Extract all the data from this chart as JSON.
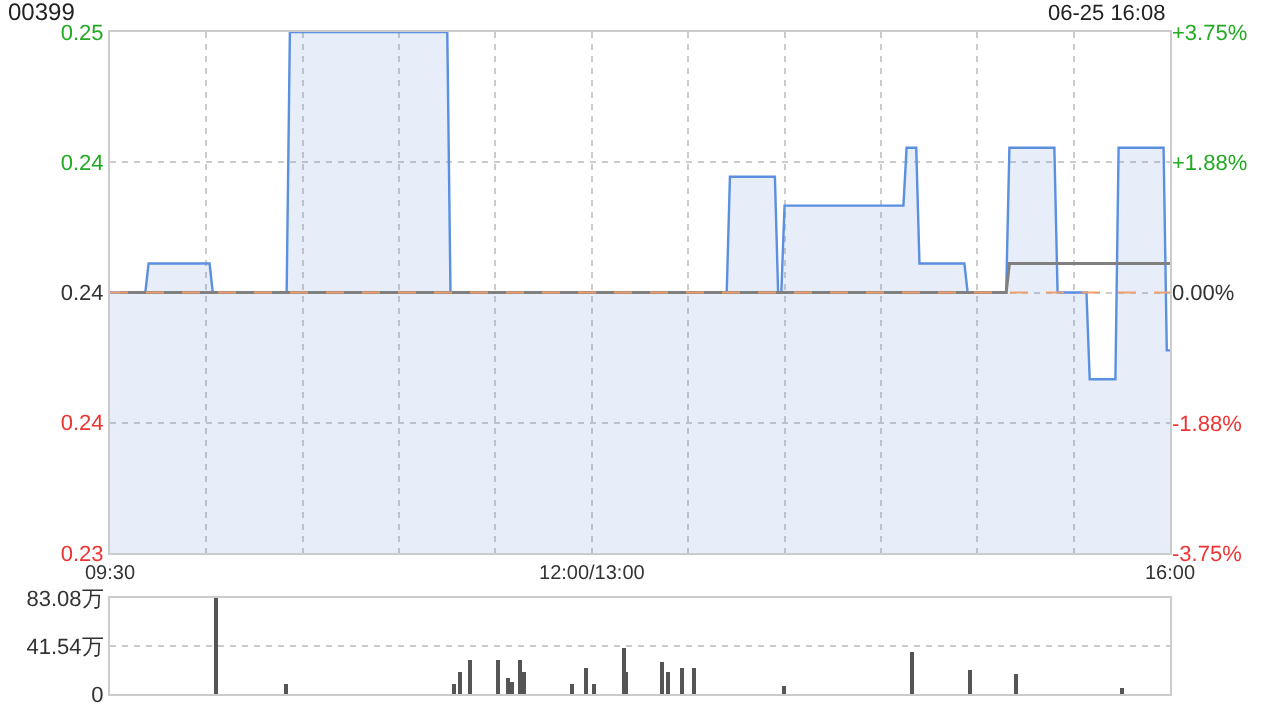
{
  "chart_data": [
    {
      "type": "area",
      "title": "00399",
      "annotations": [
        "06-25 16:08"
      ],
      "categories": [
        "09:30",
        null,
        null,
        null,
        null,
        null,
        null,
        null,
        null,
        null,
        null,
        null,
        null,
        null,
        null,
        null,
        null,
        null,
        null,
        null,
        null,
        null,
        null,
        null,
        null,
        null,
        null,
        null,
        null,
        null,
        null,
        null,
        null,
        null,
        null,
        null,
        null,
        null,
        null,
        null,
        null,
        null,
        null,
        null,
        null,
        null,
        null,
        null,
        null,
        null,
        null,
        null,
        null,
        null,
        null,
        null,
        null,
        null,
        null,
        null,
        null,
        null,
        null,
        null,
        null,
        null,
        null,
        null,
        null,
        null,
        null,
        null,
        null,
        null,
        null,
        null,
        null,
        null,
        null,
        null,
        null,
        null,
        null,
        null,
        null,
        null,
        null,
        null,
        null,
        null,
        null,
        null,
        null,
        null,
        null,
        null,
        null,
        null,
        null,
        null,
        null,
        null,
        null,
        null,
        null,
        null,
        null,
        null,
        null,
        null,
        null,
        null,
        null,
        null,
        null,
        null,
        null,
        null,
        null,
        null,
        null,
        null,
        null,
        null,
        null,
        null,
        null,
        null,
        null,
        null,
        null,
        null,
        null,
        null,
        null,
        null,
        null,
        null,
        null,
        null,
        null,
        null,
        null,
        null,
        null,
        null,
        null,
        null,
        null,
        null,
        "12:00/13:00",
        null,
        null,
        null,
        null,
        null,
        null,
        null,
        null,
        null,
        null,
        null,
        null,
        null,
        null,
        null,
        null,
        null,
        null,
        null,
        null,
        null,
        null,
        null,
        null,
        null,
        null,
        null,
        null,
        null,
        null,
        null,
        null,
        null,
        null,
        null,
        null,
        null,
        null,
        null,
        null,
        null,
        null,
        null,
        null,
        null,
        null,
        null,
        null,
        null,
        null,
        null,
        null,
        null,
        null,
        null,
        null,
        null,
        null,
        null,
        null,
        null,
        null,
        null,
        null,
        null,
        null,
        null,
        null,
        null,
        null,
        null,
        null,
        null,
        null,
        null,
        null,
        null,
        null,
        null,
        null,
        null,
        null,
        null,
        null,
        null,
        null,
        null,
        null,
        null,
        null,
        null,
        null,
        null,
        null,
        null,
        null,
        null,
        null,
        null,
        null,
        null,
        null,
        null,
        null,
        null,
        null,
        null,
        null,
        null,
        null,
        null,
        null,
        null,
        null,
        null,
        null,
        null,
        null,
        null,
        null,
        null,
        null,
        null,
        null,
        null,
        null,
        null,
        null,
        null,
        null,
        null,
        null,
        null,
        null,
        null,
        null,
        null,
        null,
        null,
        null,
        null,
        null,
        null,
        null,
        null,
        null,
        null,
        null,
        null,
        null,
        null,
        null,
        null,
        null,
        null,
        null,
        null,
        null,
        null,
        null,
        null,
        null,
        null,
        null,
        null,
        null,
        null,
        null,
        null,
        null,
        null,
        null,
        null,
        null,
        null,
        null,
        null,
        null,
        null,
        "16:00"
      ],
      "series": [
        {
          "type": "area",
          "color": "#5b8fe0",
          "values": [
            0.24,
            0.24,
            0.24,
            0.24,
            0.24,
            0.24,
            0.24,
            0.24,
            0.24,
            0.24,
            0.24,
            0.24,
            0.241,
            0.241,
            0.241,
            0.241,
            0.241,
            0.241,
            0.241,
            0.241,
            0.241,
            0.241,
            0.241,
            0.241,
            0.241,
            0.241,
            0.241,
            0.241,
            0.241,
            0.241,
            0.241,
            0.241,
            0.24,
            0.24,
            0.24,
            0.24,
            0.24,
            0.24,
            0.24,
            0.24,
            0.24,
            0.24,
            0.24,
            0.24,
            0.24,
            0.24,
            0.24,
            0.24,
            0.24,
            0.24,
            0.24,
            0.24,
            0.24,
            0.24,
            0.24,
            0.24,
            0.249,
            0.249,
            0.249,
            0.249,
            0.249,
            0.249,
            0.249,
            0.249,
            0.249,
            0.249,
            0.249,
            0.249,
            0.249,
            0.249,
            0.249,
            0.249,
            0.249,
            0.249,
            0.249,
            0.249,
            0.249,
            0.249,
            0.249,
            0.249,
            0.249,
            0.249,
            0.249,
            0.249,
            0.249,
            0.249,
            0.249,
            0.249,
            0.249,
            0.249,
            0.249,
            0.249,
            0.249,
            0.249,
            0.249,
            0.249,
            0.249,
            0.249,
            0.249,
            0.249,
            0.249,
            0.249,
            0.249,
            0.249,
            0.249,
            0.249,
            0.24,
            0.24,
            0.24,
            0.24,
            0.24,
            0.24,
            0.24,
            0.24,
            0.24,
            0.24,
            0.24,
            0.24,
            0.24,
            0.24,
            0.24,
            0.24,
            0.24,
            0.24,
            0.24,
            0.24,
            0.24,
            0.24,
            0.24,
            0.24,
            0.24,
            0.24,
            0.24,
            0.24,
            0.24,
            0.24,
            0.24,
            0.24,
            0.24,
            0.24,
            0.24,
            0.24,
            0.24,
            0.24,
            0.24,
            0.24,
            0.24,
            0.24,
            0.24,
            0.24,
            0.24,
            0.24,
            0.24,
            0.24,
            0.24,
            0.24,
            0.24,
            0.24,
            0.24,
            0.24,
            0.24,
            0.24,
            0.24,
            0.24,
            0.24,
            0.24,
            0.24,
            0.24,
            0.24,
            0.24,
            0.24,
            0.24,
            0.24,
            0.24,
            0.24,
            0.24,
            0.24,
            0.24,
            0.24,
            0.24,
            0.24,
            0.24,
            0.24,
            0.24,
            0.24,
            0.24,
            0.24,
            0.24,
            0.24,
            0.24,
            0.24,
            0.24,
            0.24,
            0.244,
            0.244,
            0.244,
            0.244,
            0.244,
            0.244,
            0.244,
            0.244,
            0.244,
            0.244,
            0.244,
            0.244,
            0.244,
            0.244,
            0.244,
            0.24,
            0.24,
            0.243,
            0.243,
            0.243,
            0.243,
            0.243,
            0.243,
            0.243,
            0.243,
            0.243,
            0.243,
            0.243,
            0.243,
            0.243,
            0.243,
            0.243,
            0.243,
            0.243,
            0.243,
            0.243,
            0.243,
            0.243,
            0.243,
            0.243,
            0.243,
            0.243,
            0.243,
            0.243,
            0.243,
            0.243,
            0.243,
            0.243,
            0.243,
            0.243,
            0.243,
            0.243,
            0.243,
            0.243,
            0.243,
            0.245,
            0.245,
            0.245,
            0.245,
            0.241,
            0.241,
            0.241,
            0.241,
            0.241,
            0.241,
            0.241,
            0.241,
            0.241,
            0.241,
            0.241,
            0.241,
            0.241,
            0.241,
            0.241,
            0.24,
            0.24,
            0.24,
            0.24,
            0.24,
            0.24,
            0.24,
            0.24,
            0.24,
            0.24,
            0.24,
            0.24,
            0.24,
            0.245,
            0.245,
            0.245,
            0.245,
            0.245,
            0.245,
            0.245,
            0.245,
            0.245,
            0.245,
            0.245,
            0.245,
            0.245,
            0.245,
            0.245,
            0.24,
            0.24,
            0.24,
            0.24,
            0.24,
            0.24,
            0.24,
            0.24,
            0.24,
            0.24,
            0.237,
            0.237,
            0.237,
            0.237,
            0.237,
            0.237,
            0.237,
            0.237,
            0.237,
            0.245,
            0.245,
            0.245,
            0.245,
            0.245,
            0.245,
            0.245,
            0.245,
            0.245,
            0.245,
            0.245,
            0.245,
            0.245,
            0.245,
            0.245,
            0.238,
            0.238
          ]
        },
        {
          "type": "line",
          "color": "#808080",
          "values": [
            null,
            null,
            null,
            0.24,
            0.24,
            0.24,
            0.24,
            0.24,
            0.24,
            0.24,
            0.24,
            0.24,
            0.24,
            0.24,
            0.24,
            0.24,
            0.24,
            0.24,
            0.24,
            0.24,
            0.24,
            0.24,
            0.24,
            0.24,
            0.24,
            0.24,
            0.24,
            0.24,
            0.24,
            0.24,
            0.24,
            0.24,
            0.24,
            0.24,
            0.24,
            0.24,
            0.24,
            0.24,
            0.24,
            0.24,
            0.24,
            0.24,
            0.24,
            0.24,
            0.24,
            0.24,
            0.24,
            0.24,
            0.24,
            0.24,
            0.24,
            0.24,
            0.24,
            0.24,
            0.24,
            0.24,
            0.24,
            0.24,
            0.24,
            0.24,
            0.24,
            0.24,
            0.24,
            0.24,
            0.24,
            0.24,
            0.24,
            0.24,
            0.24,
            0.24,
            0.24,
            0.24,
            0.24,
            0.24,
            0.24,
            0.24,
            0.24,
            0.24,
            0.24,
            0.24,
            0.24,
            0.24,
            0.24,
            0.24,
            0.24,
            0.24,
            0.24,
            0.24,
            0.24,
            0.24,
            0.24,
            0.24,
            0.24,
            0.24,
            0.24,
            0.24,
            0.24,
            0.24,
            0.24,
            0.24,
            0.24,
            0.24,
            0.24,
            0.24,
            0.24,
            0.24,
            0.24,
            0.24,
            0.24,
            0.24,
            0.24,
            0.24,
            0.24,
            0.24,
            0.24,
            0.24,
            0.24,
            0.24,
            0.24,
            0.24,
            0.24,
            0.24,
            0.24,
            0.24,
            0.24,
            0.24,
            0.24,
            0.24,
            0.24,
            0.24,
            0.24,
            0.24,
            0.24,
            0.24,
            0.24,
            0.24,
            0.24,
            0.24,
            0.24,
            0.24,
            0.24,
            0.24,
            0.24,
            0.24,
            0.24,
            0.24,
            0.24,
            0.24,
            0.24,
            0.24,
            0.24,
            0.24,
            0.24,
            0.24,
            0.24,
            0.24,
            0.24,
            0.24,
            0.24,
            0.24,
            0.24,
            0.24,
            0.24,
            0.24,
            0.24,
            0.24,
            0.24,
            0.24,
            0.24,
            0.24,
            0.24,
            0.24,
            0.24,
            0.24,
            0.24,
            0.24,
            0.24,
            0.24,
            0.24,
            0.24,
            0.24,
            0.24,
            0.24,
            0.24,
            0.24,
            0.24,
            0.24,
            0.24,
            0.24,
            0.24,
            0.24,
            0.24,
            0.24,
            0.24,
            0.24,
            0.24,
            0.24,
            0.24,
            0.24,
            0.24,
            0.24,
            0.24,
            0.24,
            0.24,
            0.24,
            0.24,
            0.24,
            0.24,
            0.24,
            0.24,
            0.24,
            0.24,
            0.24,
            0.24,
            0.24,
            0.24,
            0.24,
            0.24,
            0.24,
            0.24,
            0.24,
            0.24,
            0.24,
            0.24,
            0.24,
            0.24,
            0.24,
            0.24,
            0.24,
            0.24,
            0.24,
            0.24,
            0.24,
            0.24,
            0.24,
            0.24,
            0.24,
            0.24,
            0.24,
            0.24,
            0.24,
            0.24,
            0.24,
            0.24,
            0.24,
            0.24,
            0.24,
            0.24,
            0.24,
            0.24,
            0.24,
            0.24,
            0.24,
            0.24,
            0.24,
            0.24,
            0.24,
            0.24,
            0.24,
            0.24,
            0.24,
            0.24,
            0.24,
            0.24,
            0.24,
            0.24,
            0.24,
            0.24,
            0.24,
            0.24,
            0.24,
            0.24,
            0.24,
            0.24,
            0.24,
            0.24,
            0.24,
            0.24,
            0.24,
            0.24,
            0.241,
            0.241,
            0.241,
            0.241,
            0.241,
            0.241,
            0.241,
            0.241,
            0.241,
            0.241,
            0.241,
            0.241,
            0.241,
            0.241,
            0.241,
            0.241,
            0.241,
            0.241,
            0.241,
            0.241,
            0.241,
            0.241,
            0.241,
            0.241,
            0.241,
            0.241,
            0.241,
            0.241,
            0.241,
            0.241,
            0.241,
            0.241,
            0.241,
            0.241,
            0.241,
            0.241,
            0.241,
            0.241,
            0.241,
            0.241,
            0.241,
            0.241,
            0.241,
            0.241,
            0.241,
            0.241,
            0.241,
            0.241,
            0.241,
            0.241,
            0.241
          ]
        }
      ],
      "ylim": [
        0.231,
        0.249
      ],
      "yticks": [
        {
          "value": 0.249,
          "label": "0.25"
        },
        {
          "value": 0.2445,
          "label": "0.24"
        },
        {
          "value": 0.24,
          "label": "0.24"
        },
        {
          "value": 0.2355,
          "label": "0.24"
        },
        {
          "value": 0.231,
          "label": "0.23"
        }
      ],
      "y2lim": [
        -3.75,
        3.75
      ],
      "y2ticks": [
        {
          "value": 3.75,
          "label": "+3.75%"
        },
        {
          "value": 1.88,
          "label": "+1.88%"
        },
        {
          "value": 0,
          "label": "0.00%"
        },
        {
          "value": -1.88,
          "label": "-1.88%"
        },
        {
          "value": -3.75,
          "label": "-3.75%"
        }
      ],
      "ref_lines": [
        {
          "axis": "y",
          "value": 0.24,
          "color": "#f0a070",
          "line_style": "dashed"
        }
      ],
      "grid": true,
      "marker": "none"
    },
    {
      "type": "bar",
      "color": "#555555",
      "categories": [
        null,
        null,
        null,
        null,
        null,
        null,
        null,
        null,
        null,
        null,
        null,
        null,
        null,
        null,
        null,
        null,
        null,
        null,
        null,
        null,
        null,
        null,
        null,
        null,
        null,
        null,
        null,
        null,
        null,
        null,
        null,
        null,
        null,
        null,
        null,
        null,
        null,
        null,
        null,
        null,
        null,
        null,
        null,
        null,
        null,
        null,
        null,
        null,
        null,
        null,
        null,
        null,
        null,
        null,
        null,
        null,
        null,
        null,
        null,
        null,
        null,
        null,
        null,
        null,
        null,
        null,
        null,
        null,
        null,
        null,
        null,
        null,
        null,
        null,
        null,
        null,
        null,
        null,
        null,
        null,
        null,
        null,
        null,
        null,
        null,
        null,
        null,
        null,
        null,
        null,
        null,
        null,
        null,
        null,
        null,
        null,
        null,
        null,
        null,
        null,
        null,
        null,
        null,
        null,
        null,
        null,
        null,
        null,
        null,
        null,
        null,
        null,
        null,
        null,
        null,
        null,
        null,
        null,
        null,
        null,
        null,
        null,
        null,
        null,
        null,
        null,
        null,
        null,
        null,
        null,
        null,
        null,
        null,
        null,
        null,
        null,
        null,
        null,
        null,
        null,
        null,
        null,
        null,
        null,
        null,
        null,
        null,
        null,
        null,
        null,
        null,
        null,
        null,
        null,
        null,
        null,
        null,
        null,
        null,
        null,
        null,
        null,
        null,
        null,
        null,
        null,
        null,
        null,
        null,
        null,
        null,
        null,
        null,
        null,
        null,
        null,
        null,
        null,
        null,
        null,
        null,
        null,
        null,
        null,
        null,
        null,
        null,
        null,
        null,
        null,
        null,
        null,
        null,
        null,
        null,
        null,
        null,
        null,
        null,
        null,
        null,
        null,
        null,
        null,
        null,
        null,
        null,
        null,
        null,
        null,
        null,
        null,
        null,
        null,
        null,
        null,
        null,
        null,
        null,
        null,
        null,
        null,
        null,
        null,
        null,
        null,
        null,
        null,
        null,
        null,
        null,
        null,
        null,
        null,
        null,
        null,
        null,
        null,
        null,
        null,
        null,
        null,
        null,
        null,
        null,
        null,
        null,
        null,
        null,
        null,
        null,
        null,
        null,
        null,
        null,
        null,
        null,
        null,
        null,
        null,
        null,
        null,
        null,
        null,
        null,
        null,
        null,
        null,
        null,
        null,
        null,
        null,
        null,
        null,
        null,
        null,
        null,
        null,
        null,
        null,
        null,
        null,
        null,
        null,
        null,
        null,
        null,
        null,
        null,
        null,
        null,
        null,
        null,
        null,
        null,
        null,
        null,
        null,
        null,
        null,
        null,
        null,
        null,
        null,
        null,
        null,
        null,
        null,
        null,
        null,
        null,
        null,
        null,
        null,
        null,
        null,
        null,
        null,
        null,
        null,
        null,
        null,
        null,
        null,
        null,
        null,
        null,
        null,
        null,
        null,
        null
      ],
      "values": [
        0,
        0,
        0,
        0,
        0,
        0,
        0,
        0,
        0,
        0,
        0,
        0,
        0,
        0,
        0,
        0,
        0,
        0,
        0,
        0,
        0,
        0,
        0,
        0,
        0,
        0,
        0,
        0,
        0,
        0,
        0,
        0,
        0,
        83,
        0,
        0,
        0,
        0,
        0,
        0,
        0,
        0,
        0,
        0,
        0,
        0,
        0,
        0,
        0,
        0,
        0,
        0,
        0,
        0,
        0,
        9,
        0,
        0,
        0,
        0,
        0,
        0,
        0,
        0,
        0,
        0,
        0,
        0,
        0,
        0,
        0,
        0,
        0,
        0,
        0,
        0,
        0,
        0,
        0,
        0,
        0,
        0,
        0,
        0,
        0,
        0,
        0,
        0,
        0,
        0,
        0,
        0,
        0,
        0,
        0,
        0,
        0,
        0,
        0,
        0,
        0,
        0,
        0,
        0,
        0,
        0,
        0,
        9,
        0,
        19,
        0,
        0,
        29,
        0,
        0,
        0,
        0,
        0,
        0,
        0,
        0,
        29,
        0,
        0,
        14,
        10,
        0,
        0,
        29,
        19,
        0,
        0,
        0,
        0,
        0,
        0,
        0,
        0,
        0,
        0,
        0,
        0,
        0,
        0,
        9,
        0,
        0,
        0,
        22,
        0,
        0,
        9,
        0,
        0,
        0,
        0,
        0,
        0,
        0,
        0,
        39,
        19,
        0,
        0,
        0,
        0,
        0,
        0,
        0,
        0,
        0,
        0,
        27,
        0,
        19,
        0,
        0,
        0,
        22,
        0,
        0,
        0,
        22,
        0,
        0,
        0,
        0,
        0,
        0,
        0,
        0,
        0,
        0,
        0,
        0,
        0,
        0,
        0,
        0,
        0,
        0,
        0,
        0,
        0,
        0,
        0,
        0,
        0,
        0,
        0,
        7,
        0,
        0,
        0,
        0,
        0,
        0,
        0,
        0,
        0,
        0,
        0,
        0,
        0,
        0,
        0,
        0,
        0,
        0,
        0,
        0,
        0,
        0,
        0,
        0,
        0,
        0,
        0,
        0,
        0,
        0,
        0,
        0,
        0,
        0,
        0,
        0,
        0,
        0,
        0,
        36,
        0,
        0,
        0,
        0,
        0,
        0,
        0,
        0,
        0,
        0,
        0,
        0,
        0,
        0,
        0,
        0,
        0,
        20,
        0,
        0,
        0,
        0,
        0,
        0,
        0,
        0,
        0,
        0,
        0,
        0,
        0,
        17,
        0,
        0,
        0,
        0,
        0,
        0,
        0,
        0,
        0,
        0,
        0,
        0,
        0,
        0,
        0,
        0,
        0,
        0,
        0,
        0,
        0,
        0,
        0,
        0,
        0,
        0,
        0,
        0,
        0,
        0,
        0,
        0,
        5,
        0,
        0,
        0,
        0,
        0,
        0,
        0,
        0,
        0,
        0,
        0,
        0,
        0,
        0,
        0
      ],
      "ylim": [
        0,
        83.08
      ],
      "yticks": [
        0,
        {
          "value": 41.54,
          "label": "41.54万"
        },
        {
          "value": 83.08,
          "label": "83.08万"
        }
      ],
      "grid": "y"
    }
  ]
}
